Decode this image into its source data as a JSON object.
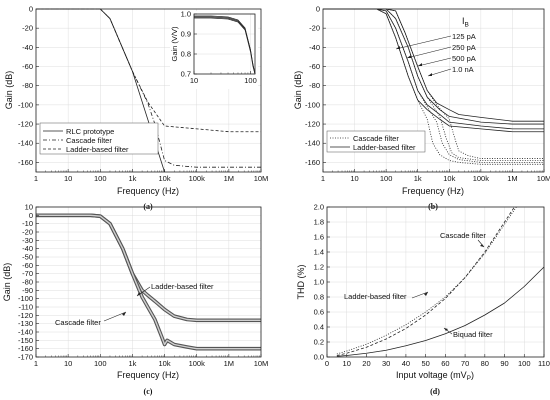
{
  "chart_data": [
    {
      "panel": "(a)",
      "type": "line",
      "xlabel": "Frequency (Hz)",
      "ylabel": "Gain (dB)",
      "xscale": "log",
      "xlim": [
        1,
        10000000
      ],
      "ylim": [
        -170,
        0
      ],
      "xticks": [
        "1",
        "10",
        "100",
        "1k",
        "10k",
        "100k",
        "1M",
        "10M"
      ],
      "yticks": [
        "0",
        "-20",
        "-40",
        "-60",
        "-80",
        "-100",
        "-120",
        "-140",
        "-160"
      ],
      "legend_position": "bottom-left",
      "grid": true,
      "series": [
        {
          "name": "RLC prototype",
          "style": "solid",
          "x": [
            1,
            50,
            100,
            200,
            1000,
            10000
          ],
          "y": [
            0,
            0,
            0,
            -10,
            -65,
            -170
          ]
        },
        {
          "name": "Cascade filter",
          "style": "dash-dot",
          "x": [
            1,
            50,
            100,
            200,
            1000,
            3000,
            5000,
            10000,
            20000,
            100000,
            1000000,
            10000000
          ],
          "y": [
            0,
            0,
            0,
            -10,
            -65,
            -98,
            -120,
            -158,
            -163,
            -165,
            -165,
            -165
          ]
        },
        {
          "name": "Ladder-based filter",
          "style": "dashed",
          "x": [
            1,
            50,
            100,
            200,
            1000,
            3000,
            10000,
            100000,
            1000000,
            10000000
          ],
          "y": [
            0,
            0,
            0,
            -10,
            -65,
            -97,
            -122,
            -125,
            -128,
            -128
          ]
        }
      ],
      "inset": {
        "ylabel": "Gain (V/V)",
        "xscale": "log",
        "xlim": [
          10,
          120
        ],
        "ylim": [
          0.7,
          1.0
        ],
        "xticks": [
          "10",
          "100"
        ],
        "yticks": [
          "0.7",
          "0.8",
          "0.9",
          "1.0"
        ],
        "series": [
          {
            "name": "RLC prototype",
            "x": [
              10,
              20,
              40,
              60,
              80,
              100,
              110,
              120
            ],
            "y": [
              0.99,
              0.99,
              0.985,
              0.97,
              0.93,
              0.82,
              0.75,
              0.7
            ]
          },
          {
            "name": "Cascade filter",
            "x": [
              10,
              20,
              40,
              60,
              80,
              100,
              110,
              120
            ],
            "y": [
              0.985,
              0.985,
              0.98,
              0.965,
              0.925,
              0.82,
              0.75,
              0.7
            ]
          },
          {
            "name": "Ladder-based filter",
            "x": [
              10,
              20,
              40,
              60,
              80,
              100,
              110,
              120
            ],
            "y": [
              0.98,
              0.98,
              0.975,
              0.96,
              0.92,
              0.81,
              0.74,
              0.7
            ]
          }
        ]
      }
    },
    {
      "panel": "(b)",
      "type": "line",
      "xlabel": "Frequency (Hz)",
      "ylabel": "Gain (dB)",
      "xscale": "log",
      "xlim": [
        1,
        10000000
      ],
      "ylim": [
        -170,
        0
      ],
      "xticks": [
        "1",
        "10",
        "100",
        "1k",
        "10k",
        "100k",
        "1M",
        "10M"
      ],
      "yticks": [
        "0",
        "-20",
        "-40",
        "-60",
        "-80",
        "-100",
        "-120",
        "-140",
        "-160"
      ],
      "legend_position": "bottom-left",
      "grid": true,
      "bias_title": "I",
      "bias_subscript": "B",
      "bias_labels": [
        "125 pA",
        "250 pA",
        "500 pA",
        "1.0  nA"
      ],
      "series": [
        {
          "name": "Cascade filter",
          "style": "dotted",
          "bias": "125 pA",
          "x": [
            1,
            20,
            50,
            100,
            200,
            500,
            1000,
            2000,
            3000,
            5000,
            10000,
            20000,
            100000,
            10000000
          ],
          "y": [
            0,
            0,
            0,
            -5,
            -30,
            -70,
            -95,
            -115,
            -140,
            -152,
            -158,
            -160,
            -162,
            -162
          ]
        },
        {
          "name": "Cascade filter",
          "style": "dotted",
          "bias": "250 pA",
          "x": [
            1,
            50,
            100,
            200,
            500,
            1000,
            2000,
            4000,
            6000,
            10000,
            20000,
            100000,
            10000000
          ],
          "y": [
            0,
            0,
            -2,
            -20,
            -55,
            -85,
            -102,
            -118,
            -140,
            -152,
            -157,
            -160,
            -160
          ]
        },
        {
          "name": "Cascade filter",
          "style": "dotted",
          "bias": "500 pA",
          "x": [
            1,
            50,
            100,
            200,
            500,
            1000,
            2000,
            5000,
            8000,
            12000,
            20000,
            100000,
            10000000
          ],
          "y": [
            0,
            0,
            0,
            -10,
            -40,
            -70,
            -92,
            -112,
            -135,
            -150,
            -155,
            -158,
            -158
          ]
        },
        {
          "name": "Cascade filter",
          "style": "dotted",
          "bias": "1.0  nA",
          "x": [
            1,
            100,
            200,
            400,
            1000,
            2000,
            4000,
            10000,
            15000,
            20000,
            40000,
            100000,
            10000000
          ],
          "y": [
            0,
            0,
            -2,
            -25,
            -60,
            -85,
            -100,
            -115,
            -135,
            -148,
            -153,
            -156,
            -156
          ]
        },
        {
          "name": "Ladder-based filter",
          "style": "solid",
          "bias": "125 pA",
          "x": [
            1,
            20,
            50,
            100,
            200,
            500,
            1000,
            2000,
            5000,
            10000,
            100000,
            1000000,
            10000000
          ],
          "y": [
            0,
            0,
            0,
            -5,
            -30,
            -70,
            -95,
            -105,
            -115,
            -122,
            -125,
            -128,
            -128
          ]
        },
        {
          "name": "Ladder-based filter",
          "style": "solid",
          "bias": "250 pA",
          "x": [
            1,
            50,
            100,
            200,
            500,
            1000,
            2000,
            5000,
            10000,
            100000,
            1000000,
            10000000
          ],
          "y": [
            0,
            0,
            -2,
            -20,
            -55,
            -85,
            -100,
            -110,
            -118,
            -122,
            -125,
            -125
          ]
        },
        {
          "name": "Ladder-based filter",
          "style": "solid",
          "bias": "500 pA",
          "x": [
            1,
            50,
            100,
            200,
            500,
            1000,
            2000,
            5000,
            10000,
            100000,
            1000000,
            10000000
          ],
          "y": [
            0,
            0,
            0,
            -10,
            -40,
            -70,
            -92,
            -105,
            -112,
            -118,
            -120,
            -120
          ]
        },
        {
          "name": "Ladder-based filter",
          "style": "solid",
          "bias": "1.0  nA",
          "x": [
            1,
            100,
            200,
            400,
            1000,
            2000,
            4000,
            10000,
            20000,
            100000,
            1000000,
            10000000
          ],
          "y": [
            0,
            0,
            -2,
            -25,
            -60,
            -85,
            -98,
            -105,
            -110,
            -113,
            -117,
            -117
          ]
        }
      ]
    },
    {
      "panel": "(c)",
      "type": "line",
      "xlabel": "Frequency (Hz)",
      "ylabel": "Gain (dB)",
      "xscale": "log",
      "xlim": [
        1,
        10000000
      ],
      "ylim": [
        -170,
        10
      ],
      "xticks": [
        "1",
        "10",
        "100",
        "1k",
        "10k",
        "100k",
        "1M",
        "10M"
      ],
      "yticks": [
        "10",
        "0",
        "-10",
        "-20",
        "-30",
        "-40",
        "-50",
        "-60",
        "-70",
        "-80",
        "-90",
        "-100",
        "-110",
        "-120",
        "-130",
        "-140",
        "-150",
        "-160",
        "-170"
      ],
      "grid": true,
      "annotations": [
        "Ladder-based filter",
        "Cascade filter"
      ],
      "series": [
        {
          "name": "Ladder-based filter",
          "style": "band",
          "x": [
            1,
            50,
            100,
            200,
            500,
            1000,
            2000,
            3000,
            5000,
            10000,
            20000,
            50000,
            100000,
            1000000,
            10000000
          ],
          "y": [
            0,
            0,
            -1,
            -10,
            -40,
            -70,
            -90,
            -96,
            -103,
            -113,
            -121,
            -125,
            -126,
            -126,
            -126
          ]
        },
        {
          "name": "Cascade filter",
          "style": "band",
          "x": [
            1,
            50,
            100,
            200,
            500,
            1000,
            2000,
            3000,
            5000,
            8000,
            10000,
            12000,
            20000,
            50000,
            100000,
            1000000,
            10000000
          ],
          "y": [
            0,
            0,
            -1,
            -10,
            -40,
            -70,
            -98,
            -110,
            -125,
            -145,
            -155,
            -150,
            -155,
            -158,
            -160,
            -160,
            -160
          ]
        }
      ]
    },
    {
      "panel": "(d)",
      "type": "line",
      "xlabel": "Input voltage (mV",
      "xlabel_subscript": "P",
      "xlabel_suffix": ")",
      "ylabel": "THD (%)",
      "xlim": [
        0,
        110
      ],
      "ylim": [
        0,
        2.0
      ],
      "xticks": [
        "0",
        "10",
        "20",
        "30",
        "40",
        "50",
        "60",
        "70",
        "80",
        "90",
        "100",
        "110"
      ],
      "yticks": [
        "0.0",
        "0.2",
        "0.4",
        "0.6",
        "0.8",
        "1.0",
        "1.2",
        "1.4",
        "1.6",
        "1.8",
        "2.0"
      ],
      "grid": true,
      "annotations": [
        "Cascade filter",
        "Ladder-based filter",
        "Biquad filter"
      ],
      "series": [
        {
          "name": "Cascade filter",
          "style": "dashed",
          "x": [
            5,
            10,
            20,
            30,
            40,
            50,
            60,
            70,
            80,
            90,
            95
          ],
          "y": [
            0.02,
            0.05,
            0.13,
            0.24,
            0.38,
            0.56,
            0.78,
            1.06,
            1.4,
            1.8,
            2.0
          ]
        },
        {
          "name": "Ladder-based filter",
          "style": "dotted",
          "x": [
            5,
            10,
            20,
            30,
            40,
            50,
            60,
            70,
            80,
            90,
            96
          ],
          "y": [
            0.04,
            0.08,
            0.17,
            0.29,
            0.43,
            0.6,
            0.8,
            1.06,
            1.38,
            1.77,
            2.0
          ]
        },
        {
          "name": "Biquad filter",
          "style": "solid",
          "x": [
            5,
            10,
            20,
            30,
            40,
            50,
            60,
            70,
            80,
            90,
            100,
            110
          ],
          "y": [
            0.01,
            0.02,
            0.05,
            0.09,
            0.15,
            0.22,
            0.31,
            0.42,
            0.56,
            0.72,
            0.94,
            1.2
          ]
        }
      ]
    }
  ]
}
